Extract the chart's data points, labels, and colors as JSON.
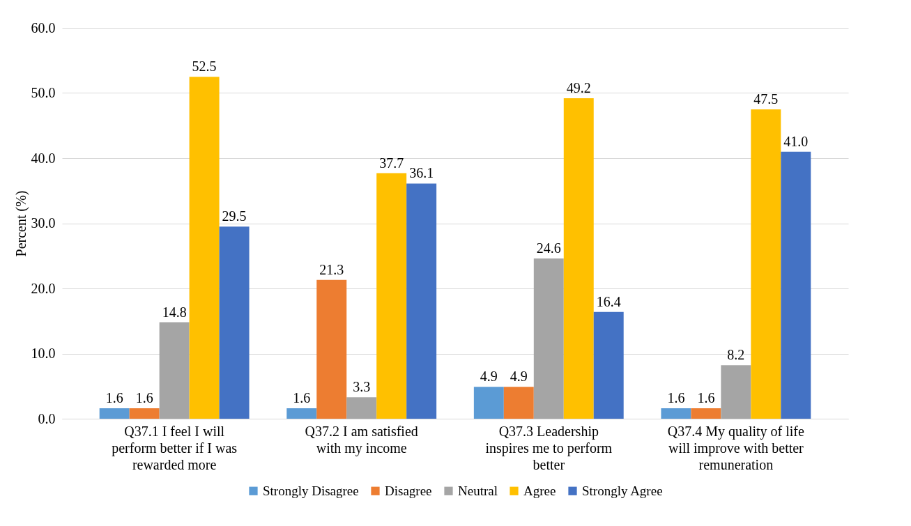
{
  "chart_data": {
    "type": "bar",
    "ylabel": "Percent (%)",
    "categories": [
      "Q37.1 I feel I will perform better if I was rewarded more",
      "Q37.2 I am satisfied with my income",
      "Q37.3 Leadership inspires me to perform better",
      "Q37.4 My quality of life will improve with better remuneration"
    ],
    "series": [
      {
        "name": "Strongly Disagree",
        "color": "#5b9bd5",
        "values": [
          1.6,
          1.6,
          4.9,
          1.6
        ],
        "value_labels": [
          "1.6",
          "1.6",
          "4.9",
          "1.6"
        ]
      },
      {
        "name": "Disagree",
        "color": "#ed7d31",
        "values": [
          1.6,
          21.3,
          4.9,
          1.6
        ],
        "value_labels": [
          "1.6",
          "21.3",
          "4.9",
          "1.6"
        ]
      },
      {
        "name": "Neutral",
        "color": "#a5a5a5",
        "values": [
          14.8,
          3.3,
          24.6,
          8.2
        ],
        "value_labels": [
          "14.8",
          "3.3",
          "24.6",
          "8.2"
        ]
      },
      {
        "name": "Agree",
        "color": "#ffc000",
        "values": [
          52.5,
          37.7,
          49.2,
          47.5
        ],
        "value_labels": [
          "52.5",
          "37.7",
          "49.2",
          "47.5"
        ]
      },
      {
        "name": "Strongly Agree",
        "color": "#4472c4",
        "values": [
          29.5,
          36.1,
          16.4,
          41.0
        ],
        "value_labels": [
          "29.5",
          "36.1",
          "16.4",
          "41.0"
        ]
      }
    ],
    "ylim": [
      0,
      60
    ],
    "yticks": [
      {
        "value": 0,
        "label": "0.0"
      },
      {
        "value": 10,
        "label": "10.0"
      },
      {
        "value": 20,
        "label": "20.0"
      },
      {
        "value": 30,
        "label": "30.0"
      },
      {
        "value": 40,
        "label": "40.0"
      },
      {
        "value": 50,
        "label": "50.0"
      },
      {
        "value": 60,
        "label": "60.0"
      }
    ],
    "grid": "y",
    "legend": "bottom"
  }
}
